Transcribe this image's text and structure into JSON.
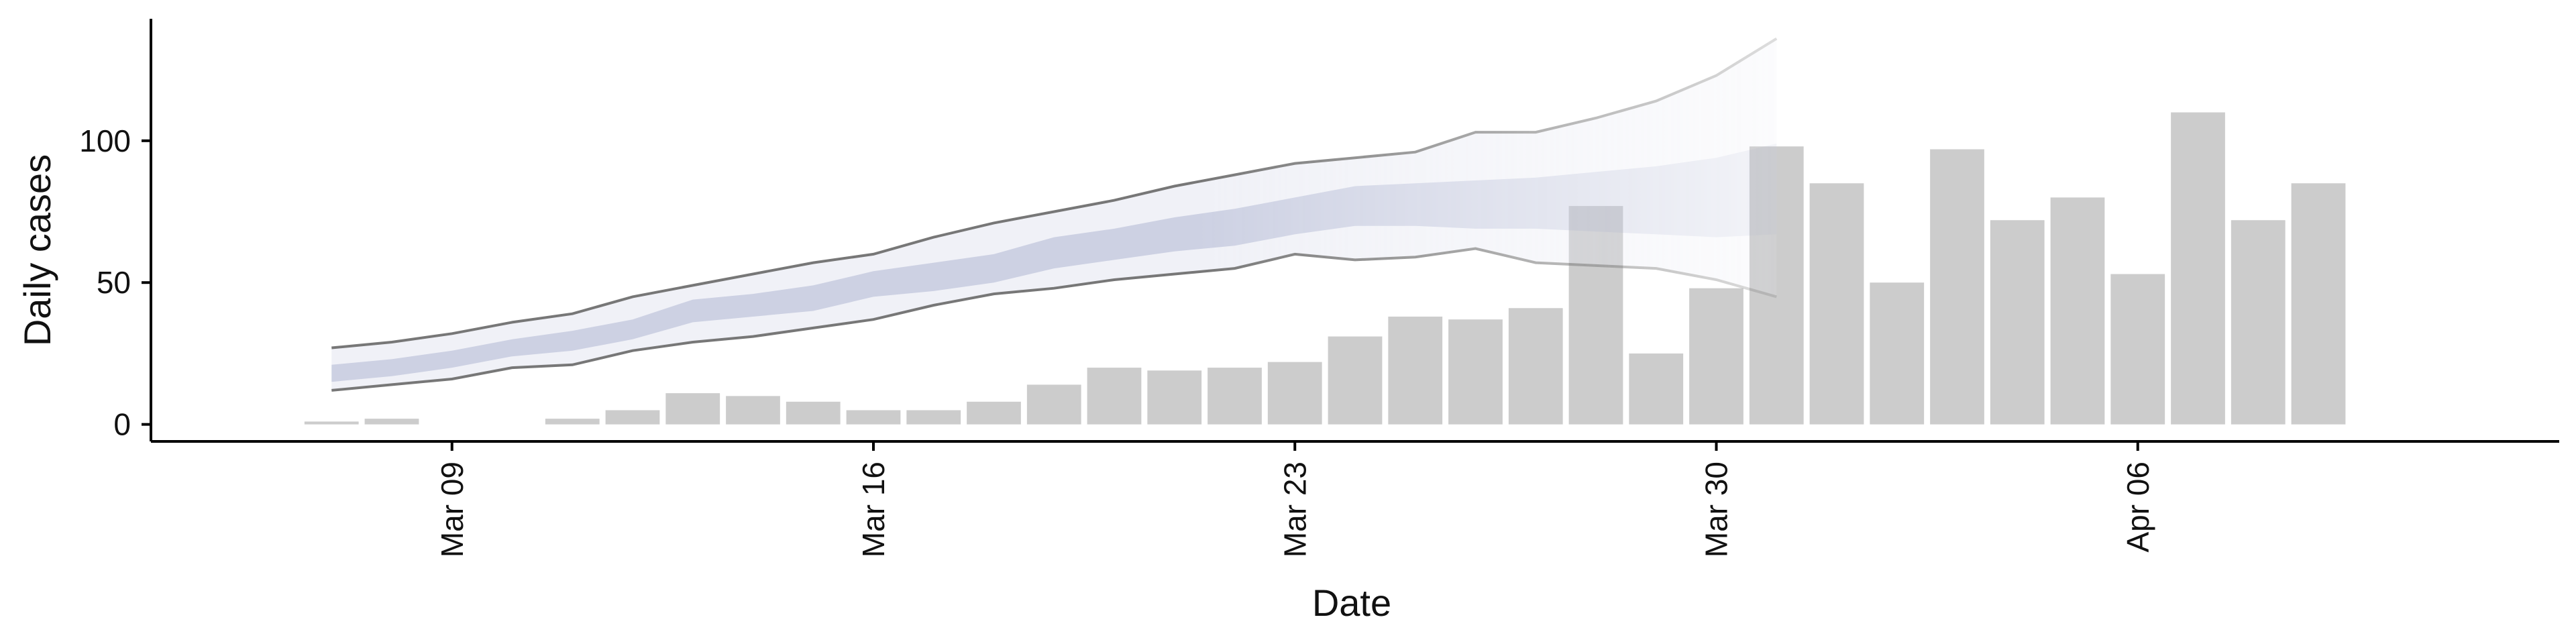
{
  "chart_data": {
    "type": "bar",
    "xlabel": "Date",
    "ylabel": "Daily cases",
    "x_tick_labels": [
      {
        "label": "Mar 09",
        "date": "2020-03-09"
      },
      {
        "label": "Mar 16",
        "date": "2020-03-16"
      },
      {
        "label": "Mar 23",
        "date": "2020-03-23"
      },
      {
        "label": "Mar 30",
        "date": "2020-03-30"
      },
      {
        "label": "Apr 06",
        "date": "2020-04-06"
      }
    ],
    "y_ticks": [
      0,
      50,
      100
    ],
    "ylim": [
      -6,
      143
    ],
    "xlim": [
      "2020-03-04",
      "2020-04-13"
    ],
    "grid": false,
    "colors": {
      "bars": "#cccccc",
      "band_outer": "#e6e8f2",
      "band_inner": "#c0c6dc",
      "band_lines": "#777777"
    },
    "series": [
      {
        "type": "bar",
        "dates": [
          "2020-03-07",
          "2020-03-08",
          "2020-03-09",
          "2020-03-10",
          "2020-03-11",
          "2020-03-12",
          "2020-03-13",
          "2020-03-14",
          "2020-03-15",
          "2020-03-16",
          "2020-03-17",
          "2020-03-18",
          "2020-03-19",
          "2020-03-20",
          "2020-03-21",
          "2020-03-22",
          "2020-03-23",
          "2020-03-24",
          "2020-03-25",
          "2020-03-26",
          "2020-03-27",
          "2020-03-28",
          "2020-03-29",
          "2020-03-30",
          "2020-03-31",
          "2020-04-01",
          "2020-04-02",
          "2020-04-03",
          "2020-04-04",
          "2020-04-05",
          "2020-04-06",
          "2020-04-07",
          "2020-04-08",
          "2020-04-09"
        ],
        "values": [
          1,
          2,
          0,
          0,
          2,
          5,
          11,
          10,
          8,
          5,
          5,
          8,
          14,
          20,
          19,
          20,
          22,
          31,
          38,
          37,
          41,
          77,
          25,
          48,
          98,
          85,
          50,
          97,
          72,
          80,
          53,
          110,
          72,
          85
        ]
      },
      {
        "type": "band",
        "dates": [
          "2020-03-07",
          "2020-03-08",
          "2020-03-09",
          "2020-03-10",
          "2020-03-11",
          "2020-03-12",
          "2020-03-13",
          "2020-03-14",
          "2020-03-15",
          "2020-03-16",
          "2020-03-17",
          "2020-03-18",
          "2020-03-19",
          "2020-03-20",
          "2020-03-21",
          "2020-03-22",
          "2020-03-23",
          "2020-03-24",
          "2020-03-25",
          "2020-03-26",
          "2020-03-27",
          "2020-03-28",
          "2020-03-29",
          "2020-03-30",
          "2020-03-31"
        ],
        "outer_lower": [
          12,
          14,
          16,
          20,
          21,
          26,
          29,
          31,
          34,
          37,
          42,
          46,
          48,
          51,
          53,
          55,
          60,
          58,
          59,
          62,
          57,
          56,
          55,
          51,
          45
        ],
        "outer_upper": [
          27,
          29,
          32,
          36,
          39,
          45,
          49,
          53,
          57,
          60,
          66,
          71,
          75,
          79,
          84,
          88,
          92,
          94,
          96,
          103,
          103,
          108,
          114,
          123,
          136
        ],
        "inner_lower": [
          15,
          17,
          20,
          24,
          26,
          30,
          36,
          38,
          40,
          45,
          47,
          50,
          55,
          58,
          61,
          63,
          67,
          70,
          70,
          69,
          69,
          68,
          67,
          66,
          67
        ],
        "inner_upper": [
          21,
          23,
          26,
          30,
          33,
          37,
          44,
          46,
          49,
          54,
          57,
          60,
          66,
          69,
          73,
          76,
          80,
          84,
          85,
          86,
          87,
          89,
          91,
          94,
          99
        ]
      }
    ]
  }
}
